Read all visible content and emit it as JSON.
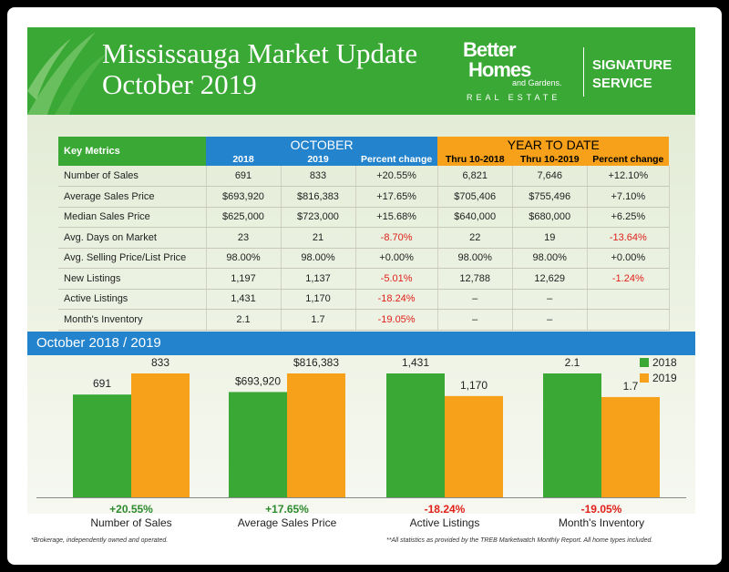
{
  "header": {
    "title_line1": "Mississauga Market Update",
    "title_line2": "October 2019",
    "brand_line1": "Better",
    "brand_line2": "Homes",
    "brand_line3": "and Gardens.",
    "brand_line4": "REAL ESTATE",
    "signature_line1": "SIGNATURE",
    "signature_line2": "SERVICE"
  },
  "colors": {
    "green": "#3aa835",
    "blue": "#2383cc",
    "orange": "#f7a11a",
    "negative": "#e0211b",
    "positive": "#2e8b2e"
  },
  "metrics": {
    "key_label": "Key Metrics",
    "october_label": "OCTOBER",
    "ytd_label": "YEAR TO DATE",
    "columns": [
      "2018",
      "2019",
      "Percent change",
      "Thru 10-2018",
      "Thru 10-2019",
      "Percent change"
    ],
    "rows": [
      {
        "label": "Number of Sales",
        "values": [
          "691",
          "833",
          "+20.55%",
          "6,821",
          "7,646",
          "+12.10%"
        ]
      },
      {
        "label": "Average Sales Price",
        "values": [
          "$693,920",
          "$816,383",
          "+17.65%",
          "$705,406",
          "$755,496",
          "+7.10%"
        ]
      },
      {
        "label": "Median Sales Price",
        "values": [
          "$625,000",
          "$723,000",
          "+15.68%",
          "$640,000",
          "$680,000",
          "+6.25%"
        ]
      },
      {
        "label": "Avg. Days on Market",
        "values": [
          "23",
          "21",
          "-8.70%",
          "22",
          "19",
          "-13.64%"
        ]
      },
      {
        "label": "Avg. Selling Price/List Price",
        "values": [
          "98.00%",
          "98.00%",
          "+0.00%",
          "98.00%",
          "98.00%",
          "+0.00%"
        ]
      },
      {
        "label": "New Listings",
        "values": [
          "1,197",
          "1,137",
          "-5.01%",
          "12,788",
          "12,629",
          "-1.24%"
        ]
      },
      {
        "label": "Active Listings",
        "values": [
          "1,431",
          "1,170",
          "-18.24%",
          "–",
          "–",
          ""
        ]
      },
      {
        "label": "Month's Inventory",
        "values": [
          "2.1",
          "1.7",
          "-19.05%",
          "–",
          "–",
          ""
        ]
      }
    ]
  },
  "band_title": "October 2018 / 2019",
  "chart_data": {
    "type": "bar",
    "legend_position": "top-right",
    "series_names": [
      "2018",
      "2019"
    ],
    "groups": [
      {
        "category": "Number of Sales",
        "values": [
          691,
          833
        ],
        "labels": [
          "691",
          "833"
        ],
        "change": "+20.55%"
      },
      {
        "category": "Average Sales Price",
        "values": [
          693920,
          816383
        ],
        "labels": [
          "$693,920",
          "$816,383"
        ],
        "change": "+17.65%"
      },
      {
        "category": "Active Listings",
        "values": [
          1431,
          1170
        ],
        "labels": [
          "1,431",
          "1,170"
        ],
        "change": "-18.24%"
      },
      {
        "category": "Month's Inventory",
        "values": [
          2.1,
          1.7
        ],
        "labels": [
          "2.1",
          "1.7"
        ],
        "change": "-19.05%"
      }
    ]
  },
  "footer": {
    "left": "*Brokerage, independently owned and operated.",
    "right": "**All statistics as provided by the TREB Marketwatch Monthly Report. All home types included."
  }
}
